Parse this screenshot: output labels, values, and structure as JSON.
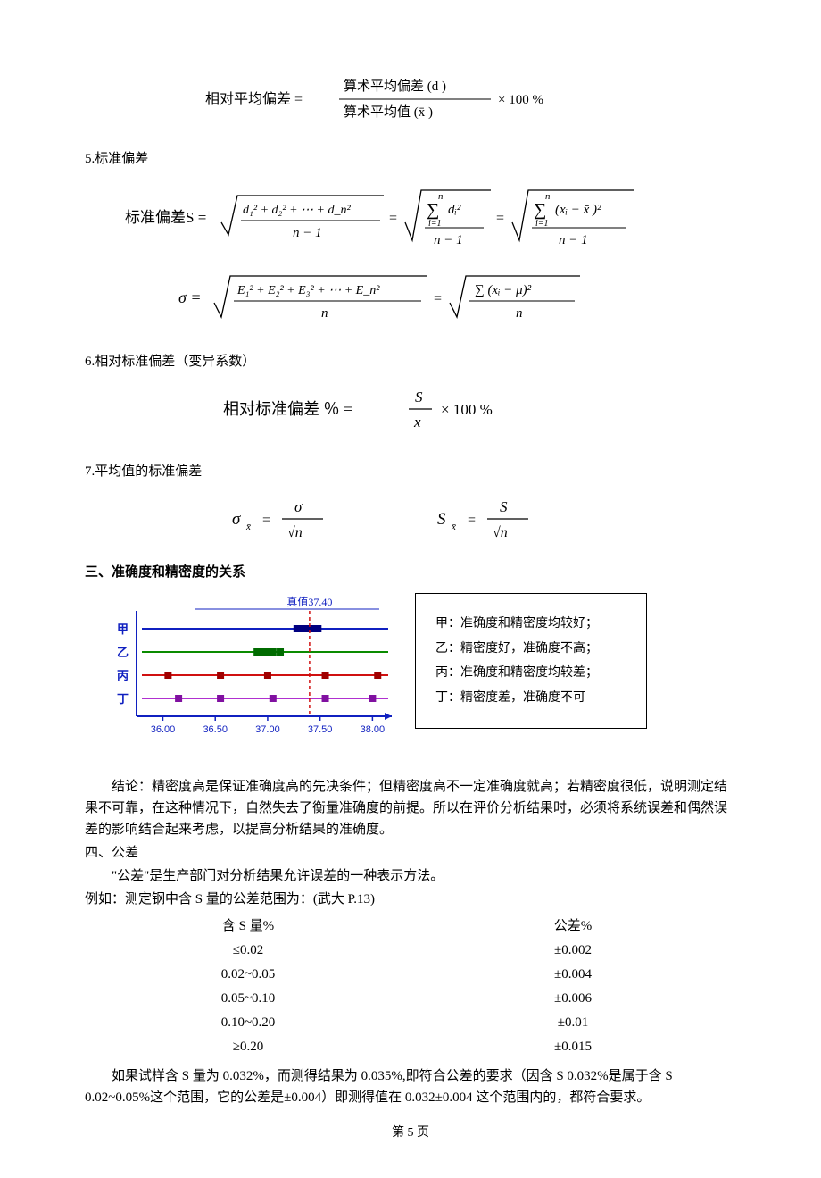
{
  "formula1": {
    "lhs": "相对平均偏差   =",
    "num": "算术平均偏差  (d̄ )",
    "den": "算术平均值  (x̄ )",
    "tail": "× 100 %"
  },
  "section5": "5.标准偏差",
  "formulaS": {
    "label": "标准偏差S =",
    "frac1_num": "d₁² + d₂² + ⋯ + d_n²",
    "frac1_den": "n − 1",
    "sum2_top": "n",
    "sum2_bot": "i=1",
    "sum2_body": "dᵢ²",
    "frac2_den": "n − 1",
    "sum3_body": "(xᵢ − x̄ )²",
    "frac3_den": "n − 1"
  },
  "formulaSigma": {
    "lhs": "σ =",
    "num1": "E₁² + E₂² + E₃² + ⋯ + E_n²",
    "den1": "n",
    "num2": "∑ (xᵢ − μ)²",
    "den2": "n"
  },
  "section6": "6.相对标准偏差（变异系数）",
  "formulaRSD": {
    "lhs": "相对标准偏差  ％ =",
    "num": "S",
    "den": "x",
    "tail": "× 100 %"
  },
  "section7": "7.平均值的标准偏差",
  "formulaMeanSD": {
    "a_lhs": "σ",
    "a_sub": "x̄",
    "a_num": "σ",
    "a_den": "√n",
    "b_lhs": "S",
    "b_sub": "x̄",
    "b_num": "S",
    "b_den": "√n"
  },
  "section3_heading": "三、准确度和精密度的关系",
  "chart": {
    "true_value_label": "真值37.40",
    "x_ticks": [
      "36.00",
      "36.50",
      "37.00",
      "37.50",
      "38.00"
    ],
    "x_positions": [
      36.0,
      36.5,
      37.0,
      37.5,
      38.0
    ],
    "xmin": 35.8,
    "xmax": 38.15,
    "rows": [
      {
        "label": "甲",
        "color_line": "#1020c0",
        "color_marker": "#000080",
        "points": [
          37.28,
          37.32,
          37.38,
          37.42,
          37.48
        ]
      },
      {
        "label": "乙",
        "color_line": "#0a8b00",
        "color_marker": "#006b00",
        "points": [
          36.9,
          36.95,
          37.0,
          37.05,
          37.12
        ]
      },
      {
        "label": "丙",
        "color_line": "#d01010",
        "color_marker": "#a00000",
        "points": [
          36.05,
          36.55,
          37.0,
          37.55,
          38.05
        ]
      },
      {
        "label": "丁",
        "color_line": "#b030d0",
        "color_marker": "#8010a0",
        "points": [
          36.15,
          36.55,
          37.05,
          37.55,
          38.0
        ]
      }
    ],
    "true_value": 37.4,
    "axis_color": "#1020c0",
    "dash_color": "#d01010",
    "plot_bg": "#ffffff"
  },
  "legend": {
    "a": "甲：准确度和精密度均较好；",
    "b": "乙：精密度好，准确度不高；",
    "c": "丙：准确度和精密度均较差；",
    "d": "丁：精密度差，准确度不可"
  },
  "conclusion": "结论：精密度高是保证准确度高的先决条件；但精密度高不一定准确度就高；若精密度很低，说明测定结果不可靠，在这种情况下，自然失去了衡量准确度的前提。所以在评价分析结果时，必须将系统误差和偶然误差的影响结合起来考虑，以提高分析结果的准确度。",
  "section4_heading": "四、公差",
  "tolerance_intro": "\"公差\"是生产部门对分析结果允许误差的一种表示方法。",
  "tolerance_example": "例如：测定钢中含 S 量的公差范围为：(武大 P.13)",
  "table_header": {
    "c1": "含 S 量%",
    "c2": "公差%"
  },
  "table_rows": [
    {
      "c1": "≤0.02",
      "c2": "±0.002"
    },
    {
      "c1": "0.02~0.05",
      "c2": "±0.004"
    },
    {
      "c1": "0.05~0.10",
      "c2": "±0.006"
    },
    {
      "c1": "0.10~0.20",
      "c2": "±0.01"
    },
    {
      "c1": "≥0.20",
      "c2": "±0.015"
    }
  ],
  "closing": "如果试样含 S 量为 0.032%，而测得结果为 0.035%,即符合公差的要求（因含 S 0.032%是属于含 S 0.02~0.05%这个范围，它的公差是±0.004）即测得值在 0.032±0.004 这个范围内的，都符合要求。",
  "footer": "第 5 页"
}
